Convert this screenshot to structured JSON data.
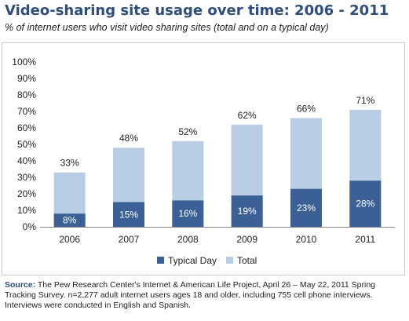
{
  "chart_data": {
    "type": "bar",
    "stacked": "overlay",
    "title": "Video-sharing site usage over time: 2006 - 2011",
    "subtitle": "% of internet users who visit video sharing sites (total and on a typical day)",
    "categories": [
      "2006",
      "2007",
      "2008",
      "2009",
      "2010",
      "2011"
    ],
    "series": [
      {
        "name": "Typical Day",
        "values": [
          8,
          15,
          16,
          19,
          23,
          28
        ],
        "labels": [
          "8%",
          "15%",
          "16%",
          "19%",
          "23%",
          "28%"
        ],
        "color": "#3b6096"
      },
      {
        "name": "Total",
        "values": [
          33,
          48,
          52,
          62,
          66,
          71
        ],
        "labels": [
          "33%",
          "48%",
          "52%",
          "62%",
          "66%",
          "71%"
        ],
        "color": "#b9cde5"
      }
    ],
    "yticks": [
      "0%",
      "10%",
      "20%",
      "30%",
      "40%",
      "50%",
      "60%",
      "70%",
      "80%",
      "90%",
      "100%"
    ],
    "ylim": [
      0,
      100
    ],
    "xlabel": "",
    "ylabel": "",
    "grid": false,
    "legend_position": "bottom"
  },
  "source": {
    "label": "Source:",
    "text": "The Pew Research Center's Internet & American Life Project, April 26 – May 22, 2011 Spring Tracking Survey. n=2,277 adult internet users ages 18 and older, including 755 cell phone interviews. Interviews were conducted in English and Spanish."
  }
}
